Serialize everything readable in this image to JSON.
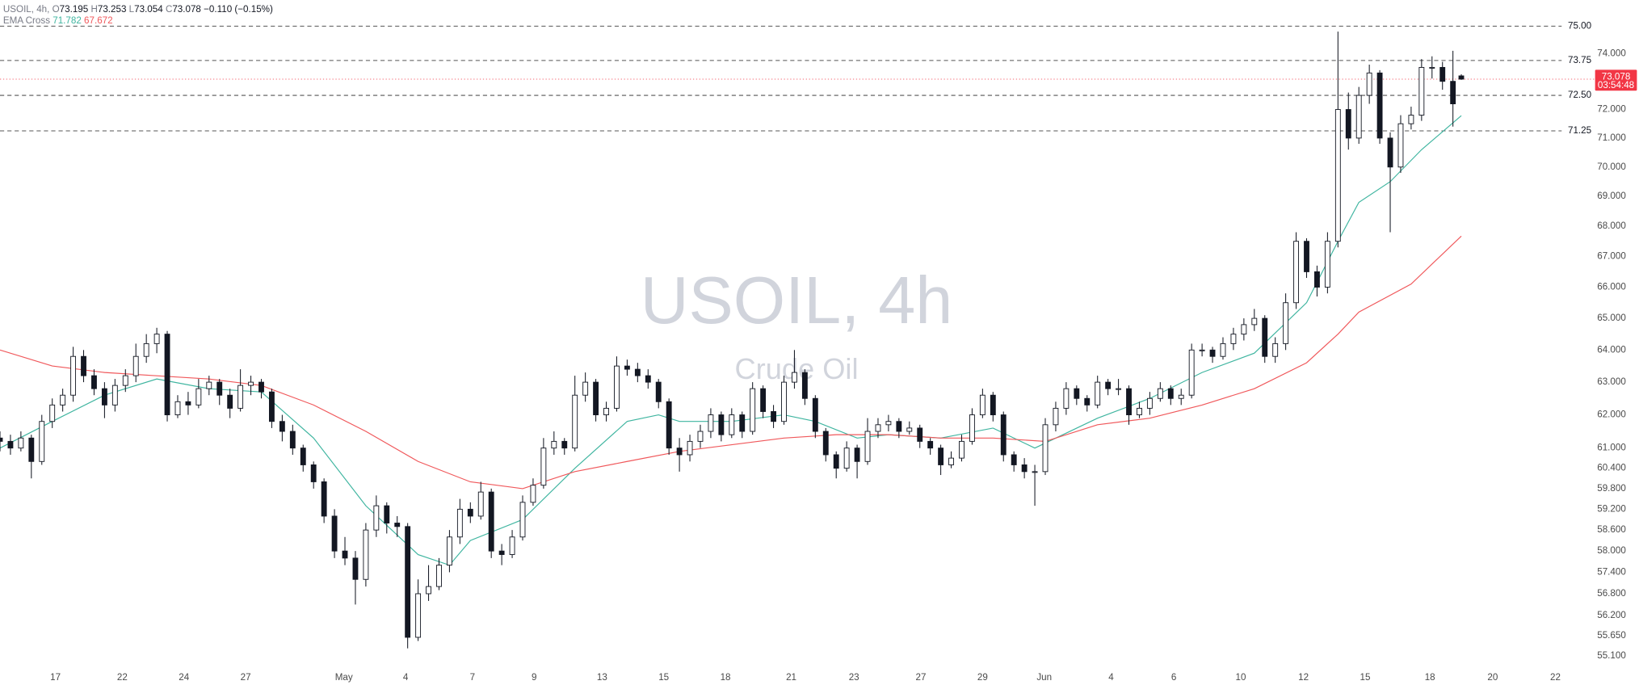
{
  "header": {
    "symbol": "USOIL, 4h,",
    "o": "O",
    "h": "H",
    "l": "L",
    "c": "C",
    "change": "−0.110 (−0.15%)",
    "indicator": "EMA Cross"
  },
  "watermark": {
    "title": "USOIL, 4h",
    "subtitle": "Crude Oil"
  },
  "countdown": "03:54:48",
  "chart_data": {
    "type": "candlestick",
    "log_scale": true,
    "up_color": "#ffffff",
    "down_color": "#131722",
    "last_price_color": "#f23645",
    "level_color": "#555555",
    "x": [
      0,
      2,
      4,
      6,
      8,
      10,
      12,
      14,
      16,
      18,
      20,
      22,
      24,
      26,
      28,
      30,
      32,
      34,
      36,
      38,
      40,
      42,
      44,
      46,
      48,
      50,
      52,
      54,
      56,
      58,
      60,
      62,
      64,
      66,
      68,
      70,
      72,
      74,
      76,
      78,
      80,
      82,
      84,
      86,
      88,
      90,
      92,
      94,
      96,
      98,
      100,
      102,
      104,
      106,
      108,
      110,
      112,
      114,
      116,
      118,
      120,
      122,
      124,
      126,
      128,
      130,
      132,
      134,
      136,
      138,
      140,
      142,
      144,
      146,
      148,
      150,
      152,
      154,
      156,
      158,
      160,
      162,
      164,
      166,
      168,
      170,
      172,
      174,
      176,
      178,
      180,
      182,
      184,
      186,
      188,
      190,
      192,
      194,
      196,
      198,
      200,
      202,
      204,
      206,
      208,
      210,
      212,
      214,
      216,
      218,
      220,
      222,
      224,
      226,
      228,
      230,
      232,
      234,
      236,
      238,
      240,
      242,
      244,
      246,
      248,
      250,
      252,
      254,
      256,
      258,
      260,
      262,
      264,
      266,
      268,
      270,
      272,
      274,
      276,
      278,
      279.6
    ],
    "ohlc": [
      [
        61.3,
        61.5,
        60.9,
        61.2
      ],
      [
        61.2,
        61.4,
        60.8,
        61.0
      ],
      [
        61.0,
        61.5,
        60.9,
        61.3
      ],
      [
        61.3,
        61.4,
        60.1,
        60.6
      ],
      [
        60.6,
        62.0,
        60.5,
        61.8
      ],
      [
        61.8,
        62.5,
        61.6,
        62.3
      ],
      [
        62.3,
        62.8,
        62.1,
        62.6
      ],
      [
        62.6,
        64.1,
        62.4,
        63.8
      ],
      [
        63.8,
        64.0,
        63.0,
        63.2
      ],
      [
        63.2,
        63.4,
        62.6,
        62.8
      ],
      [
        62.8,
        63.0,
        61.9,
        62.3
      ],
      [
        62.3,
        63.1,
        62.1,
        62.9
      ],
      [
        62.9,
        63.4,
        62.7,
        63.2
      ],
      [
        63.2,
        64.2,
        63.0,
        63.8
      ],
      [
        63.8,
        64.5,
        63.6,
        64.2
      ],
      [
        64.2,
        64.7,
        63.9,
        64.5
      ],
      [
        64.5,
        64.6,
        61.8,
        62.0
      ],
      [
        62.0,
        62.6,
        61.9,
        62.4
      ],
      [
        62.4,
        62.7,
        62.0,
        62.3
      ],
      [
        62.3,
        63.1,
        62.2,
        62.8
      ],
      [
        62.8,
        63.2,
        62.6,
        63.0
      ],
      [
        63.0,
        63.1,
        62.3,
        62.6
      ],
      [
        62.6,
        62.8,
        61.9,
        62.2
      ],
      [
        62.2,
        63.4,
        62.1,
        62.9
      ],
      [
        62.9,
        63.2,
        62.6,
        63.0
      ],
      [
        63.0,
        63.1,
        62.5,
        62.7
      ],
      [
        62.7,
        62.8,
        61.6,
        61.8
      ],
      [
        61.8,
        62.0,
        61.2,
        61.5
      ],
      [
        61.5,
        61.7,
        60.8,
        61.0
      ],
      [
        61.0,
        61.1,
        60.3,
        60.5
      ],
      [
        60.5,
        60.6,
        59.8,
        60.0
      ],
      [
        60.0,
        60.1,
        58.8,
        59.0
      ],
      [
        59.0,
        59.2,
        57.8,
        58.0
      ],
      [
        58.0,
        58.4,
        57.6,
        57.8
      ],
      [
        57.8,
        58.0,
        56.5,
        57.2
      ],
      [
        57.2,
        58.8,
        57.0,
        58.6
      ],
      [
        58.6,
        59.6,
        58.4,
        59.3
      ],
      [
        59.3,
        59.4,
        58.5,
        58.8
      ],
      [
        58.8,
        59.0,
        58.4,
        58.7
      ],
      [
        58.7,
        58.8,
        55.3,
        55.6
      ],
      [
        55.6,
        57.2,
        55.5,
        56.8
      ],
      [
        56.8,
        57.6,
        56.6,
        57.0
      ],
      [
        57.0,
        57.8,
        56.9,
        57.6
      ],
      [
        57.6,
        58.6,
        57.4,
        58.4
      ],
      [
        58.4,
        59.5,
        58.2,
        59.2
      ],
      [
        59.2,
        59.4,
        58.8,
        59.0
      ],
      [
        59.0,
        60.0,
        58.9,
        59.7
      ],
      [
        59.7,
        59.8,
        57.8,
        58.0
      ],
      [
        58.0,
        58.2,
        57.6,
        57.9
      ],
      [
        57.9,
        58.6,
        57.8,
        58.4
      ],
      [
        58.4,
        59.6,
        58.3,
        59.4
      ],
      [
        59.4,
        60.1,
        59.3,
        59.9
      ],
      [
        59.9,
        61.3,
        59.8,
        61.0
      ],
      [
        61.0,
        61.5,
        60.8,
        61.2
      ],
      [
        61.2,
        61.3,
        60.8,
        61.0
      ],
      [
        61.0,
        63.2,
        60.9,
        62.6
      ],
      [
        62.6,
        63.3,
        62.4,
        63.0
      ],
      [
        63.0,
        63.1,
        61.8,
        62.0
      ],
      [
        62.0,
        62.4,
        61.8,
        62.2
      ],
      [
        62.2,
        63.8,
        62.1,
        63.5
      ],
      [
        63.5,
        63.7,
        63.2,
        63.4
      ],
      [
        63.4,
        63.6,
        63.0,
        63.2
      ],
      [
        63.2,
        63.4,
        62.8,
        63.0
      ],
      [
        63.0,
        63.1,
        62.2,
        62.4
      ],
      [
        62.4,
        62.5,
        60.8,
        61.0
      ],
      [
        61.0,
        61.3,
        60.3,
        60.8
      ],
      [
        60.8,
        61.4,
        60.6,
        61.2
      ],
      [
        61.2,
        61.7,
        61.0,
        61.5
      ],
      [
        61.5,
        62.2,
        61.3,
        62.0
      ],
      [
        62.0,
        62.1,
        61.2,
        61.4
      ],
      [
        61.4,
        62.2,
        61.3,
        62.0
      ],
      [
        62.0,
        62.1,
        61.3,
        61.5
      ],
      [
        61.5,
        63.0,
        61.4,
        62.8
      ],
      [
        62.8,
        62.9,
        61.9,
        62.1
      ],
      [
        62.1,
        62.3,
        61.6,
        61.8
      ],
      [
        61.8,
        63.2,
        61.7,
        63.0
      ],
      [
        63.0,
        64.0,
        62.8,
        63.3
      ],
      [
        63.3,
        63.4,
        62.3,
        62.5
      ],
      [
        62.5,
        62.6,
        61.3,
        61.5
      ],
      [
        61.5,
        61.6,
        60.6,
        60.8
      ],
      [
        60.8,
        60.9,
        60.1,
        60.4
      ],
      [
        60.4,
        61.2,
        60.3,
        61.0
      ],
      [
        61.0,
        61.1,
        60.1,
        60.6
      ],
      [
        60.6,
        61.9,
        60.5,
        61.5
      ],
      [
        61.5,
        61.9,
        61.3,
        61.7
      ],
      [
        61.7,
        62.0,
        61.5,
        61.8
      ],
      [
        61.8,
        61.9,
        61.3,
        61.5
      ],
      [
        61.5,
        61.8,
        61.4,
        61.6
      ],
      [
        61.6,
        61.7,
        61.0,
        61.2
      ],
      [
        61.2,
        61.3,
        60.8,
        61.0
      ],
      [
        61.0,
        61.1,
        60.2,
        60.5
      ],
      [
        60.5,
        60.9,
        60.4,
        60.7
      ],
      [
        60.7,
        61.4,
        60.6,
        61.2
      ],
      [
        61.2,
        62.2,
        61.1,
        62.0
      ],
      [
        62.0,
        62.8,
        61.9,
        62.6
      ],
      [
        62.6,
        62.7,
        61.8,
        62.0
      ],
      [
        62.0,
        62.1,
        60.6,
        60.8
      ],
      [
        60.8,
        60.9,
        60.3,
        60.5
      ],
      [
        60.5,
        60.7,
        60.1,
        60.3
      ],
      [
        60.3,
        60.5,
        59.3,
        60.3
      ],
      [
        60.3,
        61.9,
        60.2,
        61.7
      ],
      [
        61.7,
        62.4,
        61.5,
        62.2
      ],
      [
        62.2,
        63.0,
        62.0,
        62.8
      ],
      [
        62.8,
        62.9,
        62.3,
        62.5
      ],
      [
        62.5,
        62.6,
        62.1,
        62.3
      ],
      [
        62.3,
        63.2,
        62.2,
        63.0
      ],
      [
        63.0,
        63.1,
        62.6,
        62.8
      ],
      [
        62.8,
        63.1,
        62.6,
        62.8
      ],
      [
        62.8,
        62.9,
        61.7,
        62.0
      ],
      [
        62.0,
        62.4,
        61.9,
        62.2
      ],
      [
        62.2,
        62.7,
        62.0,
        62.5
      ],
      [
        62.5,
        63.0,
        62.4,
        62.8
      ],
      [
        62.8,
        62.9,
        62.3,
        62.5
      ],
      [
        62.5,
        62.8,
        62.3,
        62.6
      ],
      [
        62.6,
        64.2,
        62.5,
        64.0
      ],
      [
        64.0,
        64.2,
        63.8,
        64.0
      ],
      [
        64.0,
        64.1,
        63.6,
        63.8
      ],
      [
        63.8,
        64.4,
        63.7,
        64.2
      ],
      [
        64.2,
        64.7,
        64.0,
        64.5
      ],
      [
        64.5,
        65.0,
        64.3,
        64.8
      ],
      [
        64.8,
        65.3,
        64.6,
        65.0
      ],
      [
        65.0,
        65.1,
        63.6,
        63.8
      ],
      [
        63.8,
        64.4,
        63.6,
        64.2
      ],
      [
        64.2,
        65.8,
        64.0,
        65.5
      ],
      [
        65.5,
        67.8,
        65.3,
        67.5
      ],
      [
        67.5,
        67.6,
        66.3,
        66.5
      ],
      [
        66.5,
        66.7,
        65.7,
        66.0
      ],
      [
        66.0,
        67.8,
        65.8,
        67.5
      ],
      [
        67.5,
        74.8,
        67.3,
        72.0
      ],
      [
        72.0,
        72.6,
        70.6,
        71.0
      ],
      [
        71.0,
        72.8,
        70.8,
        72.5
      ],
      [
        72.5,
        73.6,
        72.2,
        73.3
      ],
      [
        73.3,
        73.4,
        70.8,
        71.0
      ],
      [
        71.0,
        71.2,
        67.8,
        70.0
      ],
      [
        70.0,
        71.8,
        69.8,
        71.5
      ],
      [
        71.5,
        72.1,
        71.3,
        71.8
      ],
      [
        71.8,
        73.8,
        71.6,
        73.5
      ],
      [
        73.5,
        73.9,
        73.1,
        73.5
      ],
      [
        73.5,
        73.7,
        72.7,
        73.0
      ],
      [
        73.0,
        74.1,
        71.4,
        72.2
      ],
      [
        73.195,
        73.253,
        73.054,
        73.078
      ]
    ],
    "series": [
      {
        "color": "#3fb5a0",
        "x": [
          0,
          10,
          20,
          30,
          40,
          50,
          60,
          70,
          80,
          86,
          90,
          100,
          110,
          120,
          126,
          130,
          140,
          150,
          156,
          164,
          170,
          180,
          190,
          198,
          210,
          220,
          230,
          240,
          250,
          256,
          260,
          266,
          272,
          279.6
        ],
        "values": [
          61.0,
          61.8,
          62.6,
          63.1,
          62.8,
          62.7,
          61.3,
          59.3,
          57.9,
          57.6,
          58.3,
          58.9,
          60.4,
          61.8,
          62.0,
          61.8,
          61.8,
          62.0,
          61.8,
          61.3,
          61.4,
          61.3,
          61.6,
          61.0,
          61.9,
          62.5,
          63.3,
          63.9,
          65.5,
          67.5,
          68.8,
          69.5,
          70.6,
          71.782
        ]
      },
      {
        "color": "#f0585b",
        "x": [
          0,
          10,
          20,
          30,
          40,
          50,
          60,
          70,
          80,
          90,
          100,
          110,
          120,
          130,
          140,
          150,
          160,
          170,
          180,
          190,
          200,
          210,
          220,
          230,
          240,
          250,
          256,
          260,
          270,
          279.6
        ],
        "values": [
          64.0,
          63.5,
          63.3,
          63.2,
          63.1,
          62.9,
          62.3,
          61.5,
          60.6,
          60.0,
          59.8,
          60.3,
          60.6,
          60.9,
          61.1,
          61.3,
          61.4,
          61.4,
          61.3,
          61.3,
          61.2,
          61.7,
          61.9,
          62.3,
          62.8,
          63.6,
          64.5,
          65.2,
          66.1,
          67.672
        ]
      }
    ],
    "xlim": [
      0,
      313.6
    ],
    "xticks": [
      {
        "value": 10.6,
        "label": "17"
      },
      {
        "value": 23.4,
        "label": "22"
      },
      {
        "value": 35.2,
        "label": "24"
      },
      {
        "value": 47,
        "label": "27"
      },
      {
        "value": 65.8,
        "label": "May"
      },
      {
        "value": 77.6,
        "label": "4"
      },
      {
        "value": 90.4,
        "label": "7"
      },
      {
        "value": 102.2,
        "label": "9"
      },
      {
        "value": 115.2,
        "label": "13"
      },
      {
        "value": 127,
        "label": "15"
      },
      {
        "value": 138.8,
        "label": "18"
      },
      {
        "value": 151.4,
        "label": "21"
      },
      {
        "value": 163.4,
        "label": "23"
      },
      {
        "value": 176.2,
        "label": "27"
      },
      {
        "value": 188,
        "label": "29"
      },
      {
        "value": 199.8,
        "label": "Jun"
      },
      {
        "value": 212.6,
        "label": "4"
      },
      {
        "value": 224.6,
        "label": "6"
      },
      {
        "value": 237.4,
        "label": "10"
      },
      {
        "value": 249.4,
        "label": "12"
      },
      {
        "value": 261.2,
        "label": "15"
      },
      {
        "value": 273.6,
        "label": "18"
      },
      {
        "value": 285.6,
        "label": "20"
      },
      {
        "value": 297.6,
        "label": "22"
      }
    ],
    "ylim": [
      54.74,
      75.96
    ],
    "yticks": [
      {
        "value": 74,
        "label": "74.000"
      },
      {
        "value": 72,
        "label": "72.000"
      },
      {
        "value": 71,
        "label": "71.000"
      },
      {
        "value": 70,
        "label": "70.000"
      },
      {
        "value": 69,
        "label": "69.000"
      },
      {
        "value": 68,
        "label": "68.000"
      },
      {
        "value": 67,
        "label": "67.000"
      },
      {
        "value": 66,
        "label": "66.000"
      },
      {
        "value": 65,
        "label": "65.000"
      },
      {
        "value": 64,
        "label": "64.000"
      },
      {
        "value": 63,
        "label": "63.000"
      },
      {
        "value": 62,
        "label": "62.000"
      },
      {
        "value": 61,
        "label": "61.000"
      },
      {
        "value": 60.4,
        "label": "60.400"
      },
      {
        "value": 59.8,
        "label": "59.800"
      },
      {
        "value": 59.2,
        "label": "59.200"
      },
      {
        "value": 58.6,
        "label": "58.600"
      },
      {
        "value": 58,
        "label": "58.000"
      },
      {
        "value": 57.4,
        "label": "57.400"
      },
      {
        "value": 56.8,
        "label": "56.800"
      },
      {
        "value": 56.2,
        "label": "56.200"
      },
      {
        "value": 55.65,
        "label": "55.650"
      },
      {
        "value": 55.1,
        "label": "55.100"
      }
    ],
    "levels": [
      {
        "value": 75,
        "label": "75.00"
      },
      {
        "value": 73.75,
        "label": "73.75"
      },
      {
        "value": 72.5,
        "label": "72.50"
      },
      {
        "value": 71.25,
        "label": "71.25"
      }
    ]
  }
}
